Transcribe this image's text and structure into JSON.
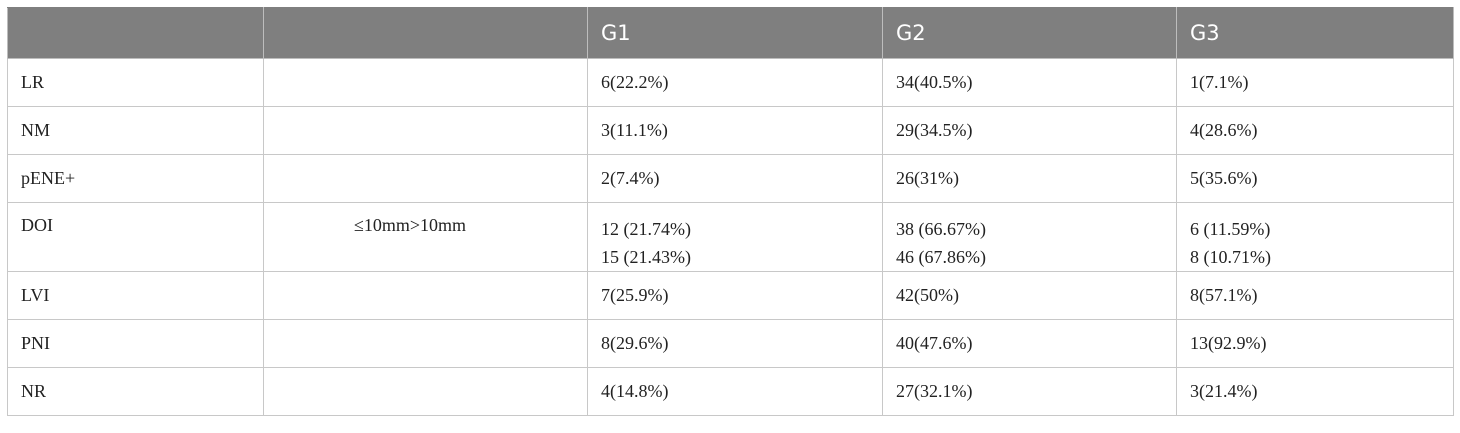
{
  "header": [
    "",
    "",
    "G1",
    "G2",
    "G3"
  ],
  "rows": [
    {
      "label": "LR",
      "sub": "",
      "g1": [
        "6(22.2%)"
      ],
      "g2": [
        "34(40.5%)"
      ],
      "g3": [
        "1(7.1%)"
      ]
    },
    {
      "label": "NM",
      "sub": "",
      "g1": [
        "3(11.1%)"
      ],
      "g2": [
        "29(34.5%)"
      ],
      "g3": [
        "4(28.6%)"
      ]
    },
    {
      "label": "pENE+",
      "sub": "",
      "g1": [
        "2(7.4%)"
      ],
      "g2": [
        "26(31%)"
      ],
      "g3": [
        "5(35.6%)"
      ]
    },
    {
      "label": "DOI",
      "sub": "≤10mm>10mm",
      "g1": [
        "12 (21.74%)",
        "15 (21.43%)"
      ],
      "g2": [
        "38 (66.67%)",
        "46 (67.86%)"
      ],
      "g3": [
        "6 (11.59%)",
        "8 (10.71%)"
      ]
    },
    {
      "label": "LVI",
      "sub": "",
      "g1": [
        "7(25.9%)"
      ],
      "g2": [
        "42(50%)"
      ],
      "g3": [
        "8(57.1%)"
      ]
    },
    {
      "label": "PNI",
      "sub": "",
      "g1": [
        "8(29.6%)"
      ],
      "g2": [
        "40(47.6%)"
      ],
      "g3": [
        "13(92.9%)"
      ]
    },
    {
      "label": "NR",
      "sub": "",
      "g1": [
        "4(14.8%)"
      ],
      "g2": [
        "27(32.1%)"
      ],
      "g3": [
        "3(21.4%)"
      ]
    }
  ]
}
